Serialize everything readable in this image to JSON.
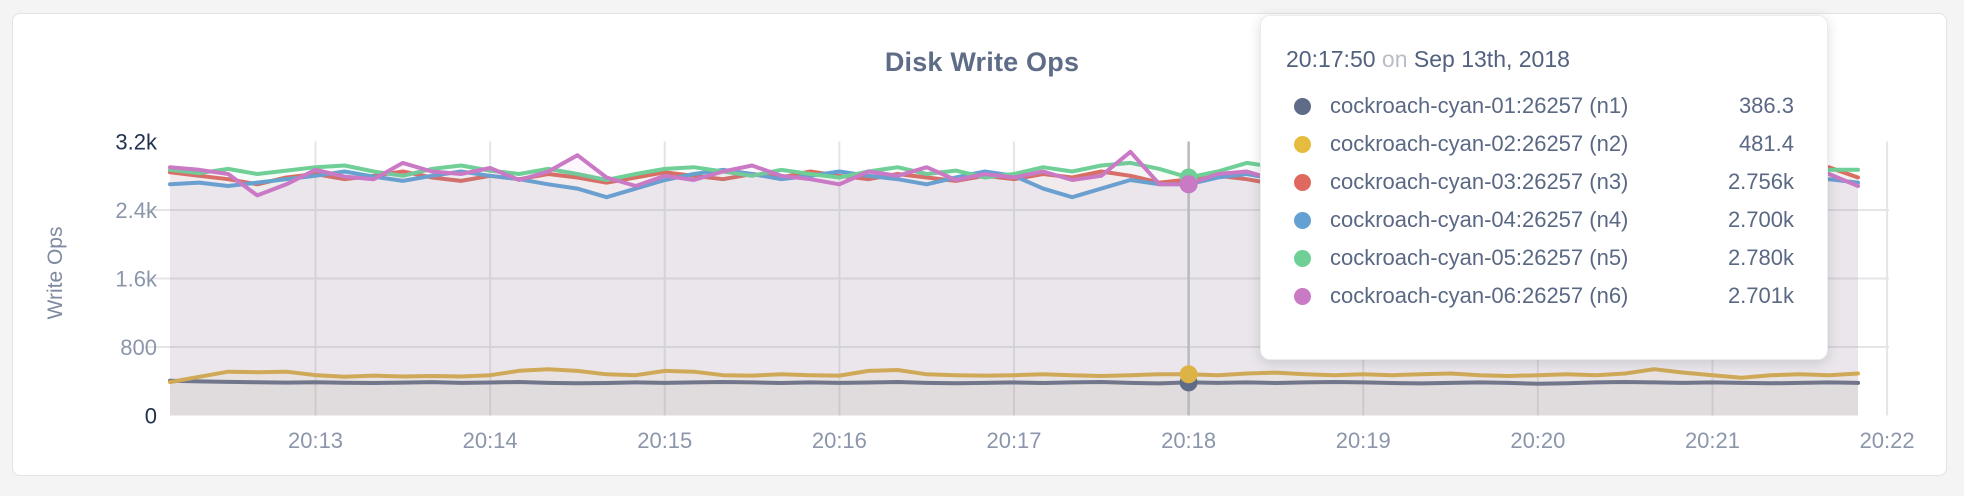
{
  "chart_data": {
    "type": "line",
    "title": "Disk Write Ops",
    "ylabel": "Write Ops",
    "ylim": [
      0,
      3200
    ],
    "grid": true,
    "y_ticks": [
      {
        "value": 0,
        "label": "0",
        "emphasis": true
      },
      {
        "value": 800,
        "label": "800",
        "emphasis": false
      },
      {
        "value": 1600,
        "label": "1.6k",
        "emphasis": false
      },
      {
        "value": 2400,
        "label": "2.4k",
        "emphasis": false
      },
      {
        "value": 3200,
        "label": "3.2k",
        "emphasis": true
      }
    ],
    "x_ticks": [
      "20:13",
      "20:14",
      "20:15",
      "20:16",
      "20:17",
      "20:18",
      "20:19",
      "20:20",
      "20:21",
      "20:22"
    ],
    "x_start_time": "20:12:10",
    "x_step_seconds": 10,
    "hover_index": 35,
    "series": [
      {
        "name": "cockroach-cyan-01:26257 (n1)",
        "color": "#5f6c87",
        "values": [
          405,
          398,
          392,
          388,
          384,
          388,
          383,
          380,
          384,
          390,
          381,
          385,
          391,
          381,
          376,
          380,
          386,
          381,
          386,
          391,
          386,
          380,
          386,
          381,
          385,
          391,
          381,
          376,
          381,
          386,
          380,
          386,
          391,
          381,
          375,
          386.3,
          381,
          386,
          380,
          386,
          391,
          386,
          380,
          375,
          381,
          386,
          381,
          371,
          376,
          386,
          391,
          386,
          381,
          386,
          381,
          376,
          381,
          386,
          381
        ]
      },
      {
        "name": "cockroach-cyan-02:26257 (n2)",
        "color": "#deb345",
        "values": [
          390,
          452,
          512,
          506,
          512,
          472,
          452,
          466,
          456,
          461,
          456,
          471,
          522,
          541,
          521,
          481,
          471,
          521,
          511,
          471,
          466,
          481,
          471,
          466,
          521,
          531,
          481,
          471,
          466,
          471,
          481,
          471,
          461,
          471,
          481,
          481.4,
          471,
          491,
          501,
          481,
          471,
          481,
          471,
          481,
          491,
          471,
          461,
          471,
          481,
          471,
          491,
          541,
          501,
          471,
          441,
          471,
          481,
          471,
          491
        ]
      },
      {
        "name": "cockroach-cyan-03:26257 (n3)",
        "color": "#e0695f",
        "values": [
          2840,
          2800,
          2760,
          2700,
          2780,
          2820,
          2760,
          2800,
          2850,
          2780,
          2740,
          2800,
          2760,
          2820,
          2780,
          2720,
          2780,
          2840,
          2800,
          2760,
          2820,
          2780,
          2850,
          2800,
          2760,
          2820,
          2780,
          2740,
          2800,
          2760,
          2820,
          2780,
          2850,
          2800,
          2720,
          2756,
          2800,
          2760,
          2700,
          2780,
          2820,
          2760,
          2800,
          2740,
          2780,
          2700,
          2760,
          2650,
          2720,
          2780,
          2820,
          2760,
          2800,
          2760,
          2700,
          2740,
          2780,
          2900,
          2780
        ]
      },
      {
        "name": "cockroach-cyan-04:26257 (n4)",
        "color": "#64a0d4",
        "values": [
          2700,
          2720,
          2680,
          2720,
          2760,
          2800,
          2850,
          2790,
          2740,
          2800,
          2850,
          2800,
          2760,
          2700,
          2650,
          2550,
          2650,
          2750,
          2820,
          2870,
          2820,
          2760,
          2800,
          2850,
          2800,
          2760,
          2700,
          2780,
          2850,
          2800,
          2650,
          2550,
          2650,
          2750,
          2700,
          2700,
          2780,
          2820,
          2760,
          2700,
          2760,
          2820,
          2780,
          2720,
          2760,
          2800,
          2700,
          2620,
          2700,
          2760,
          2800,
          2760,
          2700,
          2760,
          2820,
          2760,
          2700,
          2760,
          2720
        ]
      },
      {
        "name": "cockroach-cyan-05:26257 (n5)",
        "color": "#6fcf97",
        "values": [
          2870,
          2830,
          2880,
          2820,
          2860,
          2900,
          2920,
          2850,
          2800,
          2880,
          2920,
          2860,
          2820,
          2880,
          2820,
          2750,
          2820,
          2880,
          2900,
          2850,
          2800,
          2870,
          2820,
          2780,
          2850,
          2900,
          2820,
          2860,
          2780,
          2820,
          2900,
          2850,
          2920,
          2950,
          2880,
          2780,
          2850,
          2950,
          2900,
          2820,
          2780,
          2850,
          2800,
          2860,
          2780,
          2820,
          2750,
          2700,
          2820,
          2870,
          2800,
          2750,
          2820,
          2860,
          2800,
          2760,
          2820,
          2870,
          2870
        ]
      },
      {
        "name": "cockroach-cyan-06:26257 (n6)",
        "color": "#ca79c5",
        "values": [
          2900,
          2870,
          2820,
          2570,
          2700,
          2870,
          2790,
          2760,
          2950,
          2850,
          2820,
          2890,
          2750,
          2850,
          3040,
          2780,
          2680,
          2800,
          2750,
          2850,
          2920,
          2800,
          2760,
          2700,
          2850,
          2800,
          2900,
          2750,
          2820,
          2780,
          2850,
          2750,
          2800,
          3080,
          2700,
          2701,
          2820,
          2850,
          2750,
          2800,
          2700,
          2780,
          2860,
          2750,
          2700,
          2820,
          2780,
          2600,
          2700,
          2750,
          2820,
          2900,
          2780,
          2700,
          2750,
          2650,
          2780,
          2820,
          2680
        ]
      }
    ]
  },
  "tooltip": {
    "time": "20:17:50",
    "connector": "on",
    "date": "Sep 13th, 2018",
    "rows": [
      {
        "label": "cockroach-cyan-01:26257 (n1)",
        "value": "386.3",
        "color": "#5f6c87"
      },
      {
        "label": "cockroach-cyan-02:26257 (n2)",
        "value": "481.4",
        "color": "#e6bc3f"
      },
      {
        "label": "cockroach-cyan-03:26257 (n3)",
        "value": "2.756k",
        "color": "#e0695f"
      },
      {
        "label": "cockroach-cyan-04:26257 (n4)",
        "value": "2.700k",
        "color": "#64a0d4"
      },
      {
        "label": "cockroach-cyan-05:26257 (n5)",
        "value": "2.780k",
        "color": "#6fcf97"
      },
      {
        "label": "cockroach-cyan-06:26257 (n6)",
        "value": "2.701k",
        "color": "#ca79c5"
      }
    ]
  },
  "colors": {
    "tick_normal": "#8b96aa",
    "tick_emphasis": "#233050",
    "gridline": "#e5e5e8",
    "crosshair": "#b8bac1"
  }
}
